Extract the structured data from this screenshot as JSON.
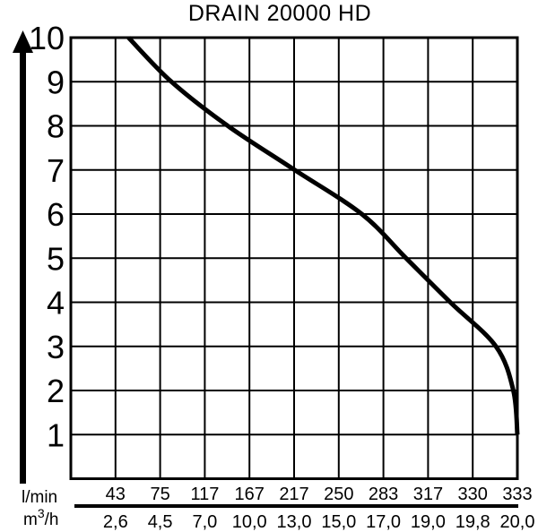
{
  "title": "DRAIN 20000 HD",
  "units": {
    "flow_lmin_label": "l/min",
    "flow_m3h_base": "m",
    "flow_m3h_sup": "3",
    "flow_m3h_rest": "/h"
  },
  "colors": {
    "ink": "#000000",
    "background": "#ffffff"
  },
  "chart_data": {
    "type": "line",
    "title": "DRAIN 20000 HD",
    "grid": "on",
    "x_axis": {
      "unit_row_1": "l/min",
      "unit_row_2": "m3/h",
      "tick_values_lmin": [
        43,
        75,
        117,
        167,
        217,
        250,
        283,
        317,
        330,
        333
      ],
      "tick_values_m3h": [
        "2,6",
        "4,5",
        "7,0",
        "10,0",
        "13,0",
        "15,0",
        "17,0",
        "19,0",
        "19,8",
        "20,0"
      ],
      "range_lmin": [
        0,
        333
      ]
    },
    "y_axis": {
      "tick_values": [
        10,
        9,
        8,
        7,
        6,
        5,
        4,
        3,
        2,
        1
      ],
      "range": [
        0,
        10
      ],
      "arrow": "up"
    },
    "series": [
      {
        "name": "DRAIN 20000 HD",
        "points": [
          {
            "flow_lmin": 43,
            "flow_m3h": 2.6,
            "head_m": 10
          },
          {
            "flow_lmin": 75,
            "flow_m3h": 4.5,
            "head_m": 9
          },
          {
            "flow_lmin": 117,
            "flow_m3h": 7.0,
            "head_m": 8
          },
          {
            "flow_lmin": 167,
            "flow_m3h": 10.0,
            "head_m": 7
          },
          {
            "flow_lmin": 217,
            "flow_m3h": 13.0,
            "head_m": 6
          },
          {
            "flow_lmin": 250,
            "flow_m3h": 15.0,
            "head_m": 5
          },
          {
            "flow_lmin": 283,
            "flow_m3h": 17.0,
            "head_m": 4
          },
          {
            "flow_lmin": 317,
            "flow_m3h": 19.0,
            "head_m": 3
          },
          {
            "flow_lmin": 330,
            "flow_m3h": 19.8,
            "head_m": 2
          },
          {
            "flow_lmin": 333,
            "flow_m3h": 20.0,
            "head_m": 1
          }
        ]
      }
    ]
  }
}
